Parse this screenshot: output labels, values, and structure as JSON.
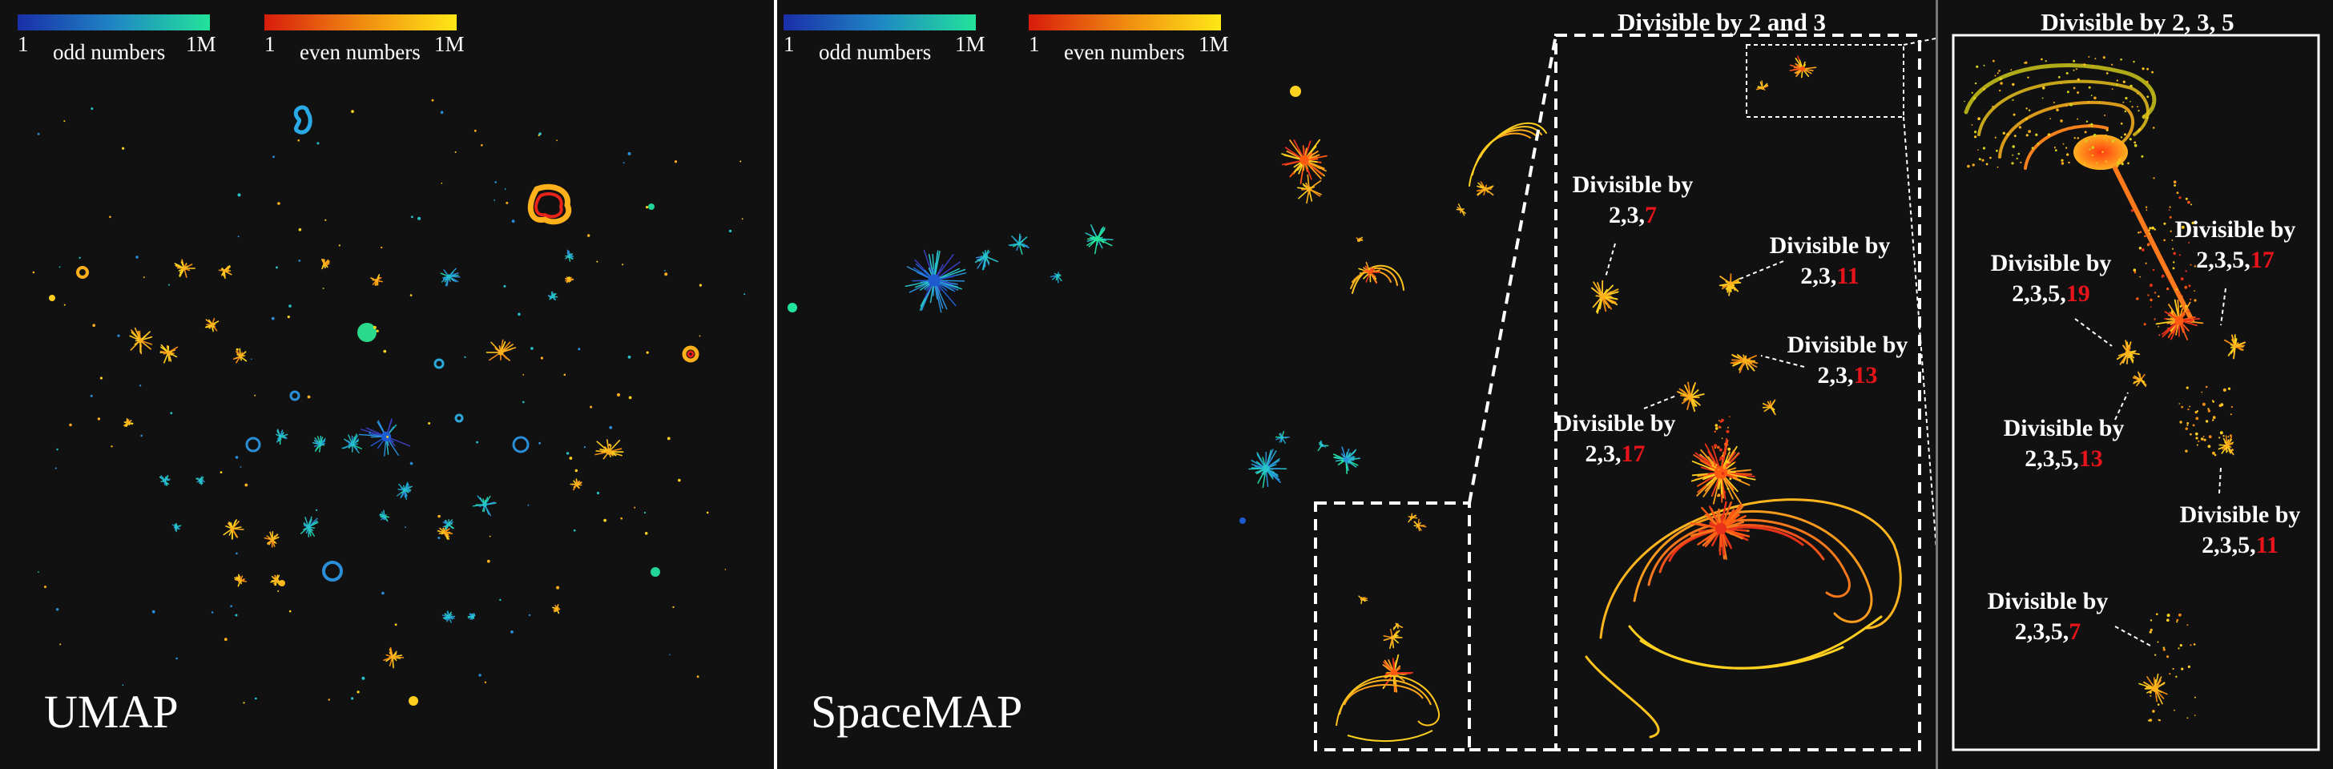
{
  "left_panel": {
    "label": "UMAP",
    "legend_odd": {
      "start": "1",
      "end": "1M",
      "name": "odd numbers"
    },
    "legend_even": {
      "start": "1",
      "end": "1M",
      "name": "even numbers"
    }
  },
  "mid_panel": {
    "label": "SpaceMAP",
    "legend_odd": {
      "start": "1",
      "end": "1M",
      "name": "odd numbers"
    },
    "legend_even": {
      "start": "1",
      "end": "1M",
      "name": "even numbers"
    }
  },
  "zoom1": {
    "title": "Divisible by 2 and 3",
    "labels": [
      {
        "line1": "Divisible by",
        "prefix": "2,3,",
        "suffix": "7"
      },
      {
        "line1": "Divisible by",
        "prefix": "2,3,",
        "suffix": "11"
      },
      {
        "line1": "Divisible by",
        "prefix": "2,3,",
        "suffix": "13"
      },
      {
        "line1": "Divisible by",
        "prefix": "2,3,",
        "suffix": "17"
      }
    ]
  },
  "zoom2": {
    "title": "Divisible by 2, 3, 5",
    "labels": [
      {
        "line1": "Divisible by",
        "prefix": "2,3,5,",
        "suffix": "19"
      },
      {
        "line1": "Divisible by",
        "prefix": "2,3,5,",
        "suffix": "17"
      },
      {
        "line1": "Divisible by",
        "prefix": "2,3,5,",
        "suffix": "13"
      },
      {
        "line1": "Divisible by",
        "prefix": "2,3,5,",
        "suffix": "11"
      },
      {
        "line1": "Divisible by",
        "prefix": "2,3,5,",
        "suffix": "7"
      }
    ]
  },
  "colors": {
    "background": "#111111",
    "odd_low": "#1a2ea8",
    "odd_high": "#22e39a",
    "even_low": "#d81b0c",
    "even_high": "#ffe817",
    "highlight_digit": "#e8141b",
    "dashed_frame": "#ffffff"
  }
}
